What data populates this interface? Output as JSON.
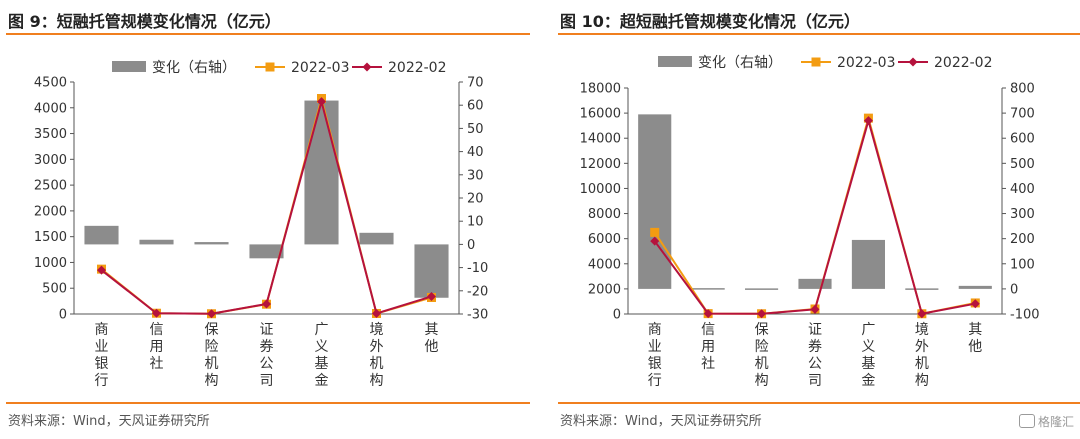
{
  "panels": [
    {
      "title": "图 9：短融托管规模变化情况（亿元）",
      "source": "资料来源：Wind，天风证券研究所"
    },
    {
      "title": "图 10：超短融托管规模变化情况（亿元）",
      "source": "资料来源：Wind，天风证券研究所"
    }
  ],
  "watermark": "格隆汇",
  "colors": {
    "bar": "#8c8c8c",
    "line_2022_03": "#f39c12",
    "line_2022_02": "#b5123d",
    "accent": "#f07f1f"
  },
  "chart_data": [
    {
      "type": "bar+line",
      "categories": [
        "商业银行",
        "信用社",
        "保险机构",
        "证券公司",
        "广义基金",
        "境外机构",
        "其他"
      ],
      "legend": [
        "变化（右轴）",
        "2022-03",
        "2022-02"
      ],
      "legend_position": "top",
      "series": [
        {
          "name": "变化（右轴）",
          "type": "bar",
          "axis": "right",
          "values": [
            8,
            2,
            1,
            -6,
            62,
            5,
            -23
          ]
        },
        {
          "name": "2022-03",
          "type": "line",
          "axis": "left",
          "values": [
            870,
            15,
            5,
            190,
            4180,
            10,
            320
          ]
        },
        {
          "name": "2022-02",
          "type": "line",
          "axis": "left",
          "values": [
            850,
            15,
            5,
            195,
            4120,
            10,
            340
          ]
        }
      ],
      "left_axis": {
        "min": 0,
        "max": 4500,
        "ticks": [
          0,
          500,
          1000,
          1500,
          2000,
          2500,
          3000,
          3500,
          4000,
          4500
        ]
      },
      "right_axis": {
        "min": -30,
        "max": 70,
        "ticks": [
          -30,
          -20,
          -10,
          0,
          10,
          20,
          30,
          40,
          50,
          60,
          70
        ]
      },
      "grid": false
    },
    {
      "type": "bar+line",
      "categories": [
        "商业银行",
        "信用社",
        "保险机构",
        "证券公司",
        "广义基金",
        "境外机构",
        "其他"
      ],
      "legend": [
        "变化（右轴）",
        "2022-03",
        "2022-02"
      ],
      "legend_position": "top",
      "series": [
        {
          "name": "变化（右轴）",
          "type": "bar",
          "axis": "right",
          "values": [
            695,
            3,
            2,
            40,
            195,
            2,
            12
          ]
        },
        {
          "name": "2022-03",
          "type": "line",
          "axis": "left",
          "values": [
            6500,
            30,
            20,
            400,
            15600,
            20,
            880
          ]
        },
        {
          "name": "2022-02",
          "type": "line",
          "axis": "left",
          "values": [
            5800,
            30,
            20,
            370,
            15400,
            20,
            820
          ]
        }
      ],
      "left_axis": {
        "min": 0,
        "max": 18000,
        "ticks": [
          0,
          2000,
          4000,
          6000,
          8000,
          10000,
          12000,
          14000,
          16000,
          18000
        ]
      },
      "right_axis": {
        "min": -100,
        "max": 800,
        "ticks": [
          -100,
          0,
          100,
          200,
          300,
          400,
          500,
          600,
          700,
          800
        ]
      },
      "grid": false
    }
  ]
}
